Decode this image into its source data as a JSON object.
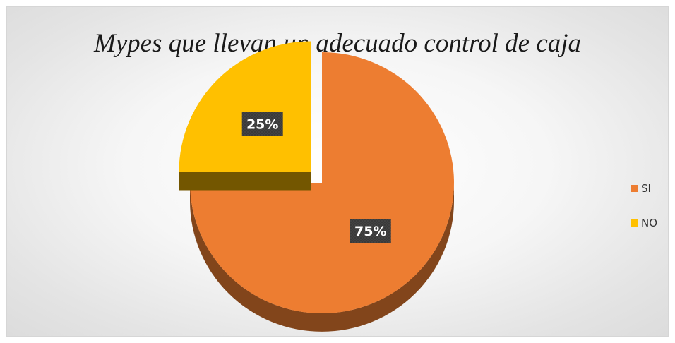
{
  "chart_data": {
    "type": "pie",
    "title": "Mypes que llevan un adecuado control de caja",
    "categories": [
      "SI",
      "NO"
    ],
    "values": [
      75,
      25
    ],
    "data_labels": [
      "75%",
      "25%"
    ],
    "colors": [
      "#ED7D31",
      "#FFC000"
    ],
    "exploded": "NO",
    "three_d": true,
    "legend_position": "right"
  }
}
